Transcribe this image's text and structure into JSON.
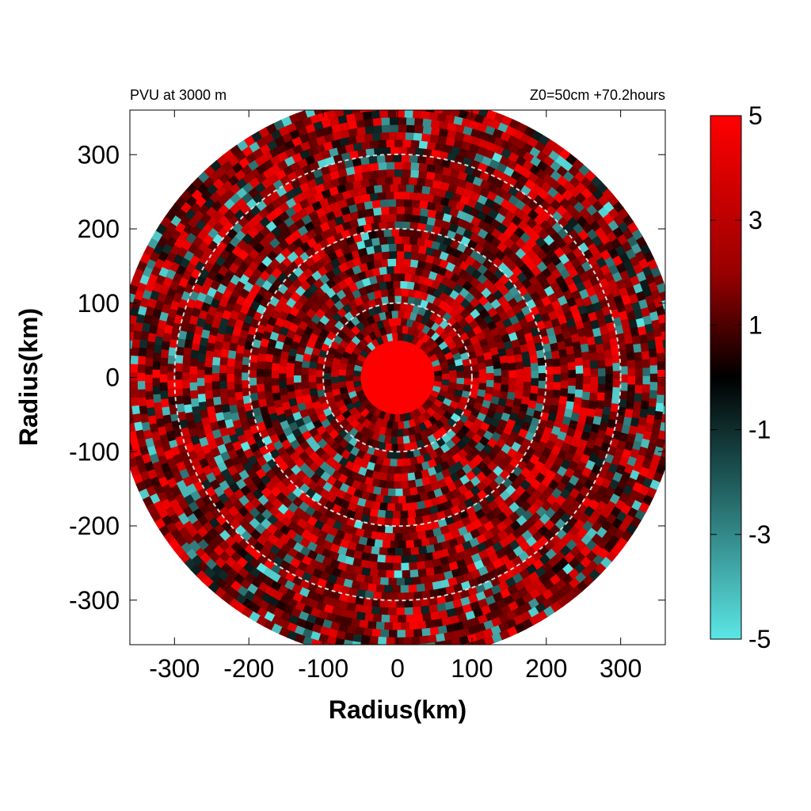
{
  "chart_data": {
    "type": "heatmap",
    "title_left": "PVU at  3000 m",
    "title_right": "Z0=50cm  +70.2hours",
    "xlabel": "Radius(km)",
    "ylabel": "Radius(km)",
    "xlim": [
      -360,
      360
    ],
    "ylim": [
      -360,
      360
    ],
    "x_ticks": [
      -300,
      -200,
      -100,
      0,
      100,
      200,
      300
    ],
    "y_ticks": [
      300,
      200,
      100,
      0,
      -100,
      -200,
      -300
    ],
    "x_tick_labels": [
      "-300",
      "-200",
      "-100",
      "0",
      "100",
      "200",
      "300"
    ],
    "y_tick_labels": [
      "300",
      "200",
      "100",
      "0",
      "-100",
      "-200",
      "-300"
    ],
    "domain_radius_km": 380,
    "reference_circles_km": [
      100,
      200,
      300
    ],
    "colorbar": {
      "range": [
        -5,
        5
      ],
      "ticks": [
        5,
        3,
        1,
        -1,
        -3,
        -5
      ],
      "tick_labels": [
        "5",
        "3",
        "1",
        "-1",
        "-3",
        "-5"
      ],
      "colors": {
        "max": "#ff0000",
        "mid": "#000000",
        "min": "#5ce6e6"
      }
    }
  }
}
